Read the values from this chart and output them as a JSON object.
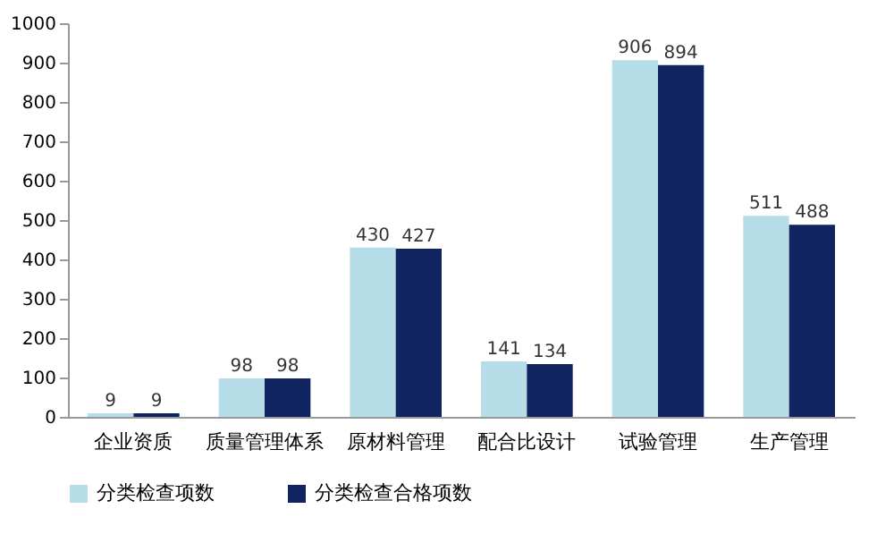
{
  "chart_data": {
    "type": "bar",
    "categories": [
      "企业资质",
      "质量管理体系",
      "原材料管理",
      "配合比设计",
      "试验管理",
      "生产管理"
    ],
    "series": [
      {
        "name": "分类检查项数",
        "color": "#b7dde8",
        "values": [
          9,
          98,
          430,
          141,
          906,
          511
        ]
      },
      {
        "name": "分类检查合格项数",
        "color": "#0f2461",
        "values": [
          9,
          98,
          427,
          134,
          894,
          488
        ]
      }
    ],
    "ylim": [
      0,
      1000
    ],
    "yticks": [
      0,
      100,
      200,
      300,
      400,
      500,
      600,
      700,
      800,
      900,
      1000
    ],
    "grid": false,
    "legend": "bottom",
    "data_labels": true
  }
}
